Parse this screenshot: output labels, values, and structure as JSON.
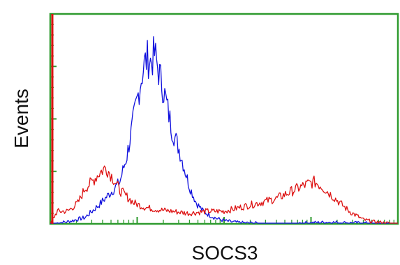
{
  "chart_data": {
    "type": "line",
    "title": "",
    "xlabel": "SOCS3",
    "ylabel": "Events",
    "x_scale": "log",
    "xlim": [
      0,
      100
    ],
    "ylim": [
      0,
      100
    ],
    "grid": false,
    "legend": "none",
    "frame_color": "#2e9a2e",
    "series": [
      {
        "color": "#1010dd",
        "x": [
          0,
          5,
          10,
          14,
          18,
          20,
          22,
          24,
          26,
          27,
          28,
          29,
          30,
          31,
          33,
          35,
          37,
          38,
          39,
          40,
          42,
          44,
          46,
          48,
          50,
          52,
          55,
          60,
          65,
          70,
          75,
          80,
          85,
          90,
          95,
          100
        ],
        "y": [
          0,
          1,
          3,
          9,
          16,
          20,
          32,
          50,
          68,
          76,
          79,
          77,
          81,
          74,
          61,
          45,
          36,
          30,
          24,
          18,
          10,
          6,
          4,
          2.5,
          1.5,
          1,
          0.5,
          0.3,
          0.3,
          0.2,
          0.5,
          0.8,
          0.5,
          0.4,
          0.2,
          0.1
        ]
      },
      {
        "color": "#dd1111",
        "x": [
          0,
          2,
          5,
          8,
          10,
          12,
          14,
          16,
          18,
          20,
          22,
          24,
          27,
          30,
          35,
          40,
          45,
          50,
          55,
          60,
          65,
          70,
          74,
          76,
          78,
          80,
          82,
          84,
          86,
          88,
          90,
          93,
          96,
          100
        ],
        "y": [
          0,
          6,
          6,
          10,
          17,
          20,
          24,
          27,
          22,
          16,
          13,
          10,
          8,
          7,
          6,
          5,
          6,
          6,
          8,
          10,
          12,
          16,
          19,
          20,
          18,
          15,
          12,
          9,
          6,
          4,
          2,
          1,
          0.5,
          0
        ],
        "spike": {
          "x": 0.6,
          "y": 100
        }
      }
    ],
    "y_ticks": {
      "major": 4,
      "minor_per_major": 5
    },
    "x_decades": 4
  }
}
